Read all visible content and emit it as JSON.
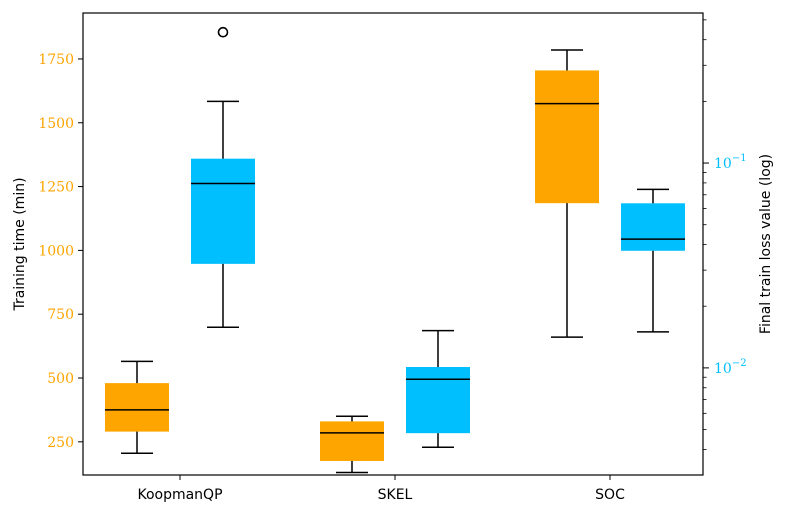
{
  "chart_data": {
    "type": "box",
    "categories": [
      "KoopmanQP",
      "SKEL",
      "SOC"
    ],
    "left_axis": {
      "label": "Training time (min)",
      "color": "#ffa500",
      "range": [
        120,
        1930
      ],
      "ticks": [
        250,
        500,
        750,
        1000,
        1250,
        1500,
        1750
      ],
      "tick_labels": [
        "250",
        "500",
        "750",
        "1000",
        "1250",
        "1500",
        "1750"
      ]
    },
    "right_axis": {
      "label": "Final train loss value (log)",
      "color": "#00bfff",
      "scale": "log",
      "range": [
        0.003,
        0.54
      ],
      "ticks": [
        0.01,
        0.1
      ],
      "tick_labels": [
        {
          "base": "10",
          "exp": "−2"
        },
        {
          "base": "10",
          "exp": "−1"
        }
      ]
    },
    "series": [
      {
        "name": "Training time",
        "axis": "left",
        "color": "#ffa500",
        "boxes": [
          {
            "category": "KoopmanQP",
            "whisker_low": 205,
            "q1": 290,
            "median": 375,
            "q3": 480,
            "whisker_high": 565,
            "outliers": []
          },
          {
            "category": "SKEL",
            "whisker_low": 130,
            "q1": 175,
            "median": 285,
            "q3": 330,
            "whisker_high": 350,
            "outliers": []
          },
          {
            "category": "SOC",
            "whisker_low": 660,
            "q1": 1185,
            "median": 1575,
            "q3": 1705,
            "whisker_high": 1785,
            "outliers": []
          }
        ]
      },
      {
        "name": "Final train loss",
        "axis": "right",
        "color": "#00bfff",
        "boxes": [
          {
            "category": "KoopmanQP",
            "whisker_low": 0.0158,
            "q1": 0.0322,
            "median": 0.0795,
            "q3": 0.105,
            "whisker_high": 0.2,
            "outliers": [
              0.435
            ]
          },
          {
            "category": "SKEL",
            "whisker_low": 0.0041,
            "q1": 0.0048,
            "median": 0.0088,
            "q3": 0.0101,
            "whisker_high": 0.0152,
            "outliers": []
          },
          {
            "category": "SOC",
            "whisker_low": 0.015,
            "q1": 0.0373,
            "median": 0.0425,
            "q3": 0.0636,
            "whisker_high": 0.0744,
            "outliers": []
          }
        ]
      }
    ]
  }
}
